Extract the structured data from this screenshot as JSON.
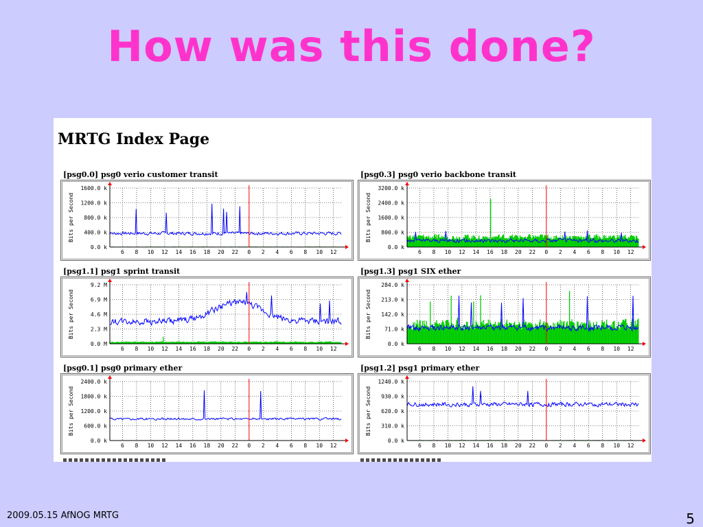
{
  "slide": {
    "title": "How was this done?",
    "footer": "2009.05.15 AfNOG MRTG",
    "page_number": "5"
  },
  "screenshot": {
    "heading": "MRTG Index Page"
  },
  "colors": {
    "background": "#ccccff",
    "title": "#ff33cc",
    "in_traffic": "#00cc00",
    "out_traffic": "#0000ff",
    "now_marker": "#ff0000"
  },
  "x_tick_labels": [
    "6",
    "8",
    "10",
    "12",
    "14",
    "16",
    "18",
    "20",
    "22",
    "0",
    "2",
    "4",
    "6",
    "8",
    "10",
    "12"
  ],
  "y_axis_label": "Bits per Second",
  "chart_data": [
    {
      "type": "area",
      "title": "[psg0.0] psg0 verio customer transit",
      "ylabel": "Bits per Second",
      "y_ticks": [
        "1600.0 k",
        "1200.0 k",
        "800.0 k",
        "400.0 k",
        "0.0 k"
      ],
      "ylim": [
        0,
        1600
      ],
      "series": [
        {
          "name": "",
          "color": "#0000ff",
          "style": "line",
          "base": 370,
          "noise": 60,
          "spike_count": 6,
          "spike": 900
        },
        {
          "name": "",
          "color": "#00cc00",
          "style": "area",
          "base": 10,
          "noise": 5,
          "spike_count": 0,
          "spike": 0
        }
      ]
    },
    {
      "type": "area",
      "title": "[psg0.3] psg0 verio backbone transit",
      "ylabel": "Bits per Second",
      "y_ticks": [
        "3200.0 k",
        "2400.0 k",
        "1600.0 k",
        "800.0 k",
        "0.0 k"
      ],
      "ylim": [
        0,
        3200
      ],
      "series": [
        {
          "name": "",
          "color": "#00cc00",
          "style": "area",
          "base": 550,
          "noise": 200,
          "spike_count": 1,
          "spike": 2600
        },
        {
          "name": "",
          "color": "#0000ff",
          "style": "line",
          "base": 350,
          "noise": 150,
          "spike_count": 5,
          "spike": 700
        }
      ]
    },
    {
      "type": "area",
      "title": "[psg1.1] psg1 sprint transit",
      "ylabel": "Bits per Second",
      "y_ticks": [
        "9.2 M",
        "6.9 M",
        "4.6 M",
        "2.3 M",
        "0.0 M"
      ],
      "ylim": [
        0,
        9.2
      ],
      "series": [
        {
          "name": "",
          "color": "#00cc00",
          "style": "area",
          "base": 0.3,
          "noise": 0.1,
          "spike_count": 1,
          "spike": 0.8
        },
        {
          "name": "",
          "color": "#0000ff",
          "style": "line",
          "base": 3.5,
          "noise": 0.7,
          "spike_count": 4,
          "spike": 3.0,
          "hump": 3.0
        }
      ]
    },
    {
      "type": "area",
      "title": "[psg1.3] psg1 SIX ether",
      "ylabel": "Bits per Second",
      "y_ticks": [
        "284.0 k",
        "213.0 k",
        "142.0 k",
        "71.0 k",
        "0.0 k"
      ],
      "ylim": [
        0,
        284
      ],
      "series": [
        {
          "name": "",
          "color": "#00cc00",
          "style": "area",
          "base": 95,
          "noise": 35,
          "spike_count": 5,
          "spike": 150
        },
        {
          "name": "",
          "color": "#0000ff",
          "style": "line",
          "base": 75,
          "noise": 20,
          "spike_count": 6,
          "spike": 170
        }
      ]
    },
    {
      "type": "area",
      "title": "[psg0.1] psg0 primary ether",
      "ylabel": "Bits per Second",
      "y_ticks": [
        "2400.0 k",
        "1800.0 k",
        "1200.0 k",
        "600.0 k",
        "0.0 k"
      ],
      "ylim": [
        0,
        2400
      ],
      "series": [
        {
          "name": "",
          "color": "#00cc00",
          "style": "area",
          "base": 10,
          "noise": 5,
          "spike_count": 0,
          "spike": 0
        },
        {
          "name": "",
          "color": "#0000ff",
          "style": "line",
          "base": 880,
          "noise": 60,
          "spike_count": 2,
          "spike": 1300
        }
      ]
    },
    {
      "type": "area",
      "title": "[psg1.2] psg1 primary ether",
      "ylabel": "Bits per Second",
      "y_ticks": [
        "1240.0 k",
        "930.0 k",
        "620.0 k",
        "310.0 k",
        "0.0 k"
      ],
      "ylim": [
        0,
        1240
      ],
      "series": [
        {
          "name": "",
          "color": "#00cc00",
          "style": "area",
          "base": 8,
          "noise": 4,
          "spike_count": 0,
          "spike": 0
        },
        {
          "name": "",
          "color": "#0000ff",
          "style": "line",
          "base": 760,
          "noise": 60,
          "spike_count": 3,
          "spike": 420
        }
      ]
    }
  ]
}
